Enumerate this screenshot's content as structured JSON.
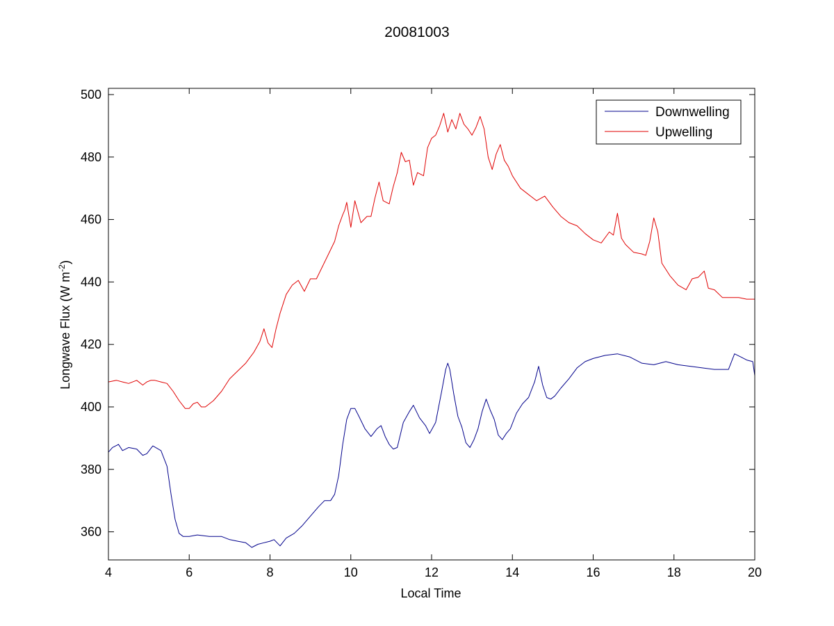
{
  "chart_data": {
    "type": "line",
    "title": "20081003",
    "xlabel": "Local Time",
    "ylabel": "Longwave Flux (W m",
    "ylabel_sup": "-2",
    "ylabel_end": ")",
    "xlim": [
      4,
      20
    ],
    "ylim": [
      351,
      502
    ],
    "xticks": [
      4,
      6,
      8,
      10,
      12,
      14,
      16,
      18,
      20
    ],
    "yticks": [
      360,
      380,
      400,
      420,
      440,
      460,
      480,
      500
    ],
    "grid": false,
    "legend": "top-right",
    "series": [
      {
        "name": "Downwelling",
        "color": "#00008b",
        "x": [
          4.0,
          4.1,
          4.25,
          4.35,
          4.5,
          4.7,
          4.85,
          4.95,
          5.1,
          5.3,
          5.45,
          5.55,
          5.65,
          5.75,
          5.85,
          6.0,
          6.2,
          6.5,
          6.8,
          7.0,
          7.2,
          7.4,
          7.55,
          7.7,
          7.85,
          8.0,
          8.1,
          8.25,
          8.4,
          8.6,
          8.8,
          9.0,
          9.2,
          9.35,
          9.5,
          9.6,
          9.7,
          9.8,
          9.9,
          10.0,
          10.1,
          10.2,
          10.35,
          10.5,
          10.65,
          10.75,
          10.85,
          10.95,
          11.05,
          11.15,
          11.3,
          11.45,
          11.55,
          11.7,
          11.85,
          11.95,
          12.1,
          12.25,
          12.35,
          12.4,
          12.45,
          12.55,
          12.65,
          12.75,
          12.85,
          12.95,
          13.05,
          13.15,
          13.25,
          13.35,
          13.45,
          13.55,
          13.65,
          13.75,
          13.85,
          13.95,
          14.1,
          14.25,
          14.4,
          14.55,
          14.65,
          14.75,
          14.85,
          14.95,
          15.05,
          15.2,
          15.4,
          15.6,
          15.8,
          16.0,
          16.3,
          16.6,
          16.9,
          17.2,
          17.5,
          17.8,
          18.1,
          18.4,
          18.7,
          19.0,
          19.2,
          19.35,
          19.5,
          19.65,
          19.8,
          19.95,
          20.0
        ],
        "y": [
          385.5,
          387,
          388,
          386,
          387,
          386.5,
          384.5,
          385,
          387.5,
          386,
          381,
          372,
          364,
          359.5,
          358.5,
          358.5,
          359,
          358.5,
          358.5,
          357.5,
          357,
          356.5,
          355,
          356,
          356.5,
          357,
          357.5,
          355.5,
          358,
          359.5,
          362,
          365,
          368,
          370,
          370,
          372,
          378,
          388,
          396,
          399.5,
          399.5,
          397,
          393,
          390.5,
          393,
          394,
          390.5,
          388,
          386.5,
          387,
          395,
          398.5,
          400.5,
          396.5,
          394,
          391.5,
          395,
          405,
          412,
          414,
          412,
          404,
          397,
          393.5,
          388.5,
          387,
          389.5,
          393,
          398.5,
          402.5,
          399,
          396,
          391,
          389.5,
          391.5,
          393,
          398,
          401,
          403,
          408,
          413,
          407,
          403,
          402.5,
          403.5,
          406,
          409,
          412.5,
          414.5,
          415.5,
          416.5,
          417,
          416,
          414,
          413.5,
          414.5,
          413.5,
          413,
          412.5,
          412,
          412,
          412,
          417,
          416,
          415,
          414.5,
          410
        ]
      },
      {
        "name": "Upwelling",
        "color": "#e00000",
        "x": [
          4.0,
          4.2,
          4.35,
          4.5,
          4.7,
          4.85,
          4.95,
          5.05,
          5.15,
          5.3,
          5.45,
          5.6,
          5.75,
          5.9,
          6.0,
          6.1,
          6.2,
          6.3,
          6.4,
          6.6,
          6.8,
          7.0,
          7.2,
          7.4,
          7.6,
          7.75,
          7.85,
          7.95,
          8.05,
          8.15,
          8.25,
          8.4,
          8.55,
          8.7,
          8.85,
          9.0,
          9.15,
          9.3,
          9.45,
          9.6,
          9.7,
          9.8,
          9.85,
          9.9,
          10.0,
          10.1,
          10.25,
          10.4,
          10.5,
          10.6,
          10.7,
          10.8,
          10.95,
          11.05,
          11.15,
          11.25,
          11.35,
          11.45,
          11.55,
          11.65,
          11.8,
          11.9,
          12.0,
          12.1,
          12.2,
          12.3,
          12.4,
          12.5,
          12.6,
          12.7,
          12.8,
          12.9,
          13.0,
          13.1,
          13.2,
          13.3,
          13.4,
          13.5,
          13.6,
          13.7,
          13.8,
          13.9,
          14.0,
          14.2,
          14.4,
          14.6,
          14.8,
          15.0,
          15.2,
          15.4,
          15.6,
          15.8,
          16.0,
          16.2,
          16.4,
          16.5,
          16.6,
          16.7,
          16.8,
          17.0,
          17.2,
          17.3,
          17.4,
          17.5,
          17.6,
          17.7,
          17.9,
          18.1,
          18.3,
          18.45,
          18.6,
          18.75,
          18.85,
          19.0,
          19.2,
          19.4,
          19.6,
          19.8,
          20.0
        ],
        "y": [
          408,
          408.5,
          408,
          407.5,
          408.5,
          407,
          408,
          408.5,
          408.5,
          408,
          407.5,
          405,
          402,
          399.5,
          399.5,
          401,
          401.5,
          400,
          400,
          402,
          405,
          409,
          411.5,
          414,
          417.5,
          421,
          425,
          420.5,
          419,
          425,
          430,
          436,
          439,
          440.5,
          437,
          441,
          441,
          445,
          449,
          453,
          458,
          461.5,
          463,
          465.5,
          457.5,
          466,
          459,
          461,
          461,
          467,
          472,
          466,
          465,
          470.5,
          475,
          481.5,
          478.5,
          479,
          471,
          475,
          474,
          483,
          486,
          487,
          490,
          494,
          488,
          492,
          489,
          494,
          490.5,
          489,
          487,
          489.5,
          493,
          489,
          480,
          476,
          481,
          484,
          479,
          477,
          474,
          470,
          468,
          466,
          467.5,
          464,
          461,
          459,
          458,
          455.5,
          453.5,
          452.5,
          456,
          455,
          462,
          454,
          452,
          449.5,
          449,
          448.5,
          453,
          460.5,
          456,
          446,
          442,
          439,
          437.5,
          441,
          441.5,
          443.5,
          438,
          437.5,
          435,
          435,
          435,
          434.5,
          434.5
        ]
      }
    ]
  }
}
